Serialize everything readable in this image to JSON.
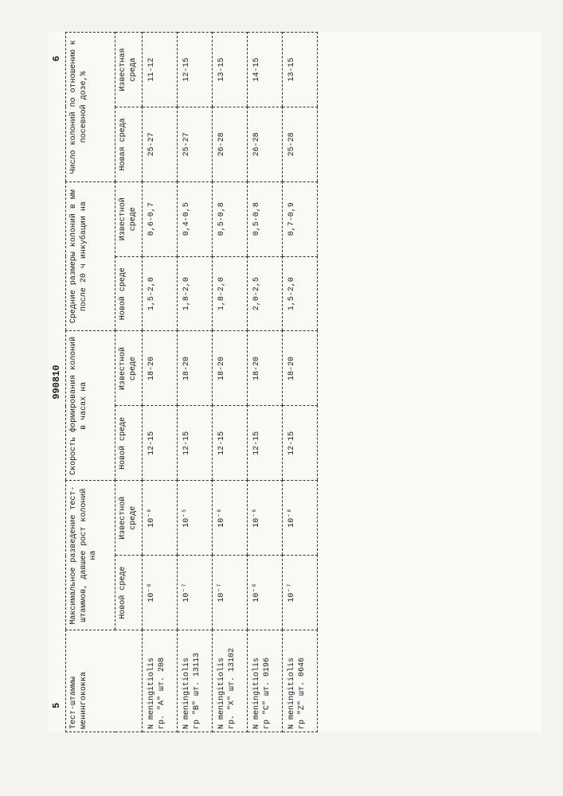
{
  "page_left_num": "5",
  "doc_id": "990810",
  "page_right_num": "6",
  "table": {
    "type": "table",
    "background_color": "#faf9f6",
    "border_style": "dashed",
    "border_color": "#333333",
    "font_family": "Courier New",
    "header_main": [
      "Тест-штаммы менингококка",
      "Максимальное разведение тест-штаммов, давшее рост колоний на",
      "Скорость формирования колоний в часах на",
      "Средние размеры колоний в мм после 20 ч инкубации на",
      "Число колоний по отношению к посевной дозе,%"
    ],
    "header_sub": [
      "Новой среде",
      "Известной среде",
      "Новой среде",
      "Известной среде",
      "Новой среде",
      "Известной среде",
      "Новая среда",
      "Известная среда"
    ],
    "rows": [
      {
        "strain_l1": "N meningitiolis",
        "strain_l2": "гр. \"A\" шт. 208",
        "dil_new": "10⁻⁸",
        "dil_known": "10⁻⁶",
        "speed_new": "12-15",
        "speed_known": "18-20",
        "size_new": "1,5-2,0",
        "size_known": "0,6-0,7",
        "count_new": "25-27",
        "count_known": "11-12"
      },
      {
        "strain_l1": "N meningitiolis",
        "strain_l2": "гр \"B\" шт. 13113",
        "dil_new": "10⁻⁷",
        "dil_known": "10⁻⁵",
        "speed_new": "12-15",
        "speed_known": "18-20",
        "size_new": "1,8-2,0",
        "size_known": "0,4-0,5",
        "count_new": "25-27",
        "count_known": "12-15"
      },
      {
        "strain_l1": "N meningitiolis",
        "strain_l2": "гр. \"X\" шт. 13102",
        "dil_new": "10⁻⁷",
        "dil_known": "10⁻⁶",
        "speed_new": "12-15",
        "speed_known": "18-20",
        "size_new": "1,8-2,0",
        "size_known": "0,5-0,8",
        "count_new": "26-28",
        "count_known": "13-15"
      },
      {
        "strain_l1": "N meningitiolis",
        "strain_l2": "гр \"C\" шт. 0196",
        "dil_new": "10⁻⁸",
        "dil_known": "10⁻⁶",
        "speed_new": "12-15",
        "speed_known": "18-20",
        "size_new": "2,0-2,5",
        "size_known": "0,5-0,8",
        "count_new": "26-28",
        "count_known": "14-15"
      },
      {
        "strain_l1": "N meningitiolis",
        "strain_l2": "гр \"Z\" шт. 0646",
        "dil_new": "10⁻⁷",
        "dil_known": "10⁻⁶",
        "speed_new": "12-15",
        "speed_known": "18-20",
        "size_new": "1,5-2,0",
        "size_known": "0,7-0,9",
        "count_new": "25-28",
        "count_known": "13-15"
      }
    ]
  }
}
